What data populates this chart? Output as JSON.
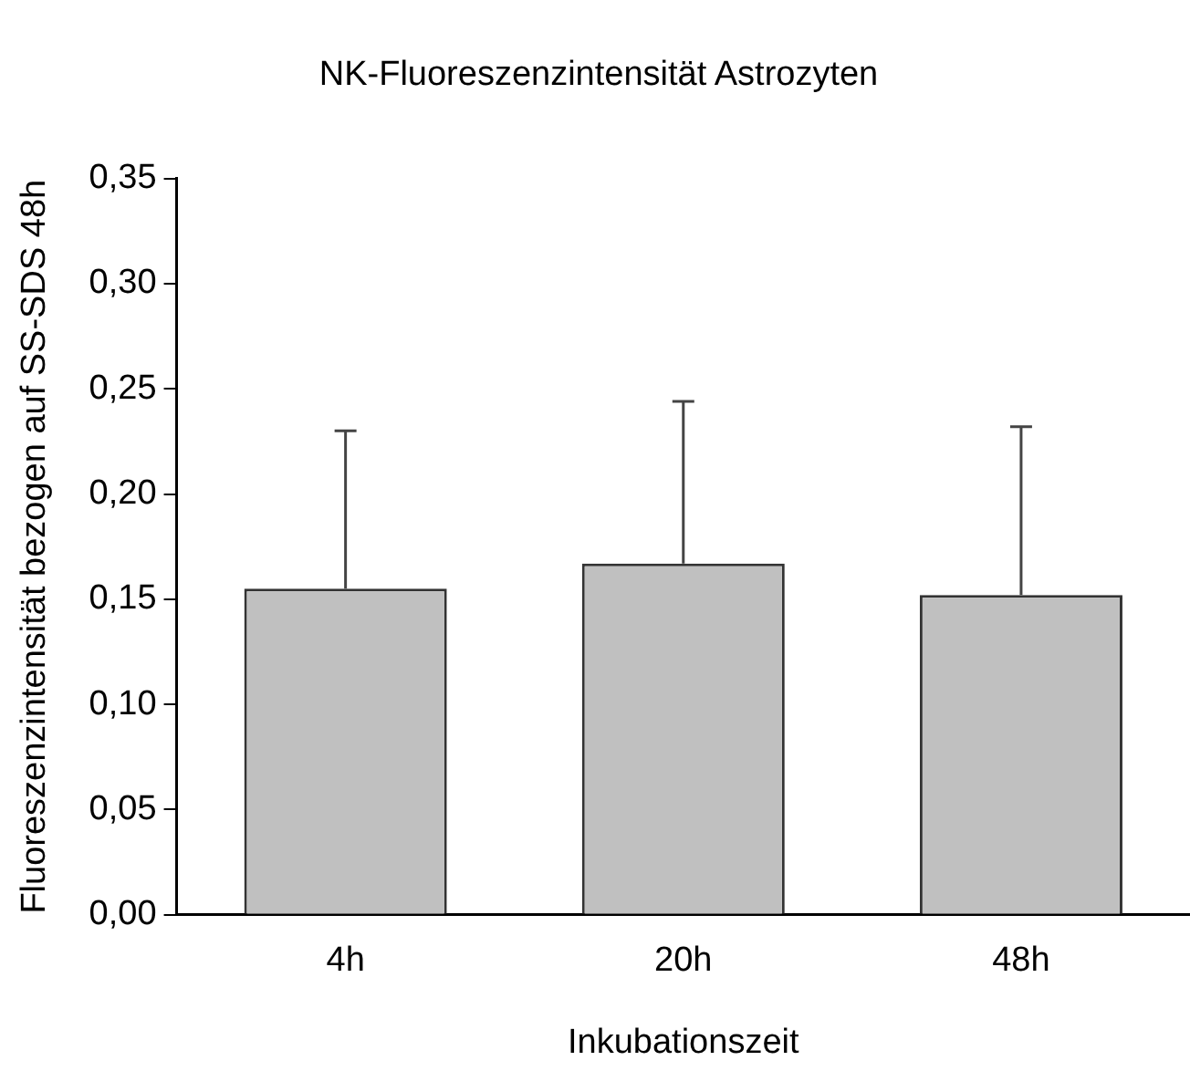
{
  "chart_data": {
    "type": "bar",
    "title": "NK-Fluoreszenzintensität Astrozyten",
    "xlabel": "Inkubationszeit",
    "ylabel": "Fluoreszenzintensität bezogen auf SS-SDS 48h",
    "categories": [
      "4h",
      "20h",
      "48h"
    ],
    "values": [
      0.155,
      0.167,
      0.152
    ],
    "errors": [
      [
        0.155,
        0.23
      ],
      [
        0.167,
        0.244
      ],
      [
        0.152,
        0.232
      ]
    ],
    "color": "#c0c0c0",
    "ylim": [
      0,
      0.35
    ],
    "yticks": [
      {
        "value": 0,
        "label": "0,00"
      },
      {
        "value": 0.05,
        "label": "0,05"
      },
      {
        "value": 0.1,
        "label": "0,10"
      },
      {
        "value": 0.15,
        "label": "0,15"
      },
      {
        "value": 0.2,
        "label": "0,20"
      },
      {
        "value": 0.25,
        "label": "0,25"
      },
      {
        "value": 0.3,
        "label": "0,30"
      },
      {
        "value": 0.35,
        "label": "0,35"
      }
    ],
    "grid": false,
    "legend": false
  }
}
